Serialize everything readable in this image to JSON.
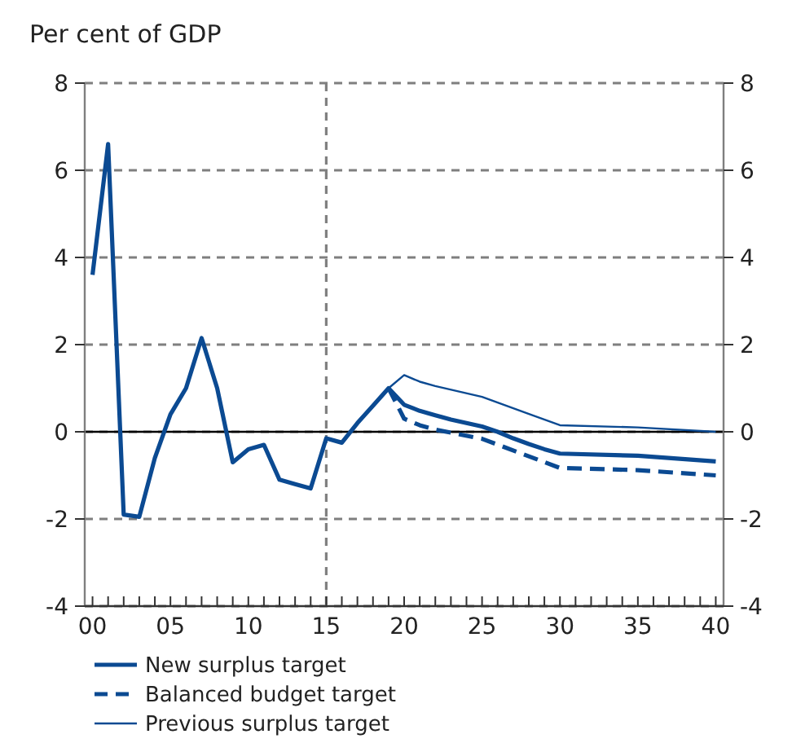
{
  "chart_data": {
    "type": "line",
    "subtitle": "Per cent of GDP",
    "series": [
      {
        "name": "New surplus target",
        "color": "#0b4a92",
        "line_style": "solid",
        "x": [
          2000,
          2001,
          2002,
          2003,
          2004,
          2005,
          2006,
          2007,
          2008,
          2009,
          2010,
          2011,
          2012,
          2013,
          2014,
          2015,
          2016,
          2017,
          2018,
          2019,
          2020,
          2021,
          2022,
          2023,
          2024,
          2025,
          2026,
          2027,
          2028,
          2029,
          2030,
          2035,
          2040
        ],
        "values": [
          3.6,
          6.6,
          -1.9,
          -1.95,
          -0.6,
          0.4,
          1.0,
          2.15,
          1.0,
          -0.7,
          -0.4,
          -0.3,
          -1.1,
          -1.2,
          -1.3,
          -0.15,
          -0.25,
          0.2,
          0.6,
          1.0,
          0.62,
          0.48,
          0.38,
          0.28,
          0.2,
          0.12,
          0.0,
          -0.15,
          -0.28,
          -0.4,
          -0.5,
          -0.55,
          -0.68
        ]
      },
      {
        "name": "Balanced budget target",
        "color": "#0b4a92",
        "line_style": "dashed",
        "x": [
          2019,
          2020,
          2021,
          2022,
          2025,
          2030,
          2035,
          2040
        ],
        "values": [
          1.0,
          0.3,
          0.15,
          0.05,
          -0.16,
          -0.83,
          -0.88,
          -1.0
        ]
      },
      {
        "name": "Previous surplus target",
        "color": "#0b4a92",
        "line_style": "solid",
        "x": [
          2019,
          2020,
          2021,
          2022,
          2025,
          2030,
          2035,
          2040
        ],
        "values": [
          1.0,
          1.3,
          1.15,
          1.05,
          0.8,
          0.15,
          0.1,
          0.0
        ]
      }
    ],
    "xlim": [
      1999.5,
      2040.5
    ],
    "xticks": [
      {
        "value": 2000,
        "label": "00"
      },
      {
        "value": 2001,
        "label": null
      },
      {
        "value": 2002,
        "label": null
      },
      {
        "value": 2003,
        "label": null
      },
      {
        "value": 2004,
        "label": null
      },
      {
        "value": 2005,
        "label": "05"
      },
      {
        "value": 2006,
        "label": null
      },
      {
        "value": 2007,
        "label": null
      },
      {
        "value": 2008,
        "label": null
      },
      {
        "value": 2009,
        "label": null
      },
      {
        "value": 2010,
        "label": "10"
      },
      {
        "value": 2011,
        "label": null
      },
      {
        "value": 2012,
        "label": null
      },
      {
        "value": 2013,
        "label": null
      },
      {
        "value": 2014,
        "label": null
      },
      {
        "value": 2015,
        "label": "15"
      },
      {
        "value": 2016,
        "label": null
      },
      {
        "value": 2017,
        "label": null
      },
      {
        "value": 2018,
        "label": null
      },
      {
        "value": 2019,
        "label": null
      },
      {
        "value": 2020,
        "label": "20"
      },
      {
        "value": 2021,
        "label": null
      },
      {
        "value": 2022,
        "label": null
      },
      {
        "value": 2023,
        "label": null
      },
      {
        "value": 2024,
        "label": null
      },
      {
        "value": 2025,
        "label": "25"
      },
      {
        "value": 2026,
        "label": null
      },
      {
        "value": 2027,
        "label": null
      },
      {
        "value": 2028,
        "label": null
      },
      {
        "value": 2029,
        "label": null
      },
      {
        "value": 2030,
        "label": "30"
      },
      {
        "value": 2031,
        "label": null
      },
      {
        "value": 2032,
        "label": null
      },
      {
        "value": 2033,
        "label": null
      },
      {
        "value": 2034,
        "label": null
      },
      {
        "value": 2035,
        "label": "35"
      },
      {
        "value": 2036,
        "label": null
      },
      {
        "value": 2037,
        "label": null
      },
      {
        "value": 2038,
        "label": null
      },
      {
        "value": 2039,
        "label": null
      },
      {
        "value": 2040,
        "label": "40"
      }
    ],
    "ylim": [
      -4,
      8
    ],
    "yticks": [
      -4,
      -2,
      0,
      2,
      4,
      6,
      8
    ],
    "y2lim": [
      -4,
      8
    ],
    "y2ticks": [
      -4,
      -2,
      0,
      2,
      4,
      6,
      8
    ],
    "grid": "y",
    "ref_lines": [
      {
        "axis": "x",
        "value": 2015,
        "color": "#808080",
        "line_style": "dashed"
      },
      {
        "axis": "y",
        "value": 0,
        "color": "#000000",
        "line_style": "solid"
      }
    ],
    "legend": "bottom"
  }
}
